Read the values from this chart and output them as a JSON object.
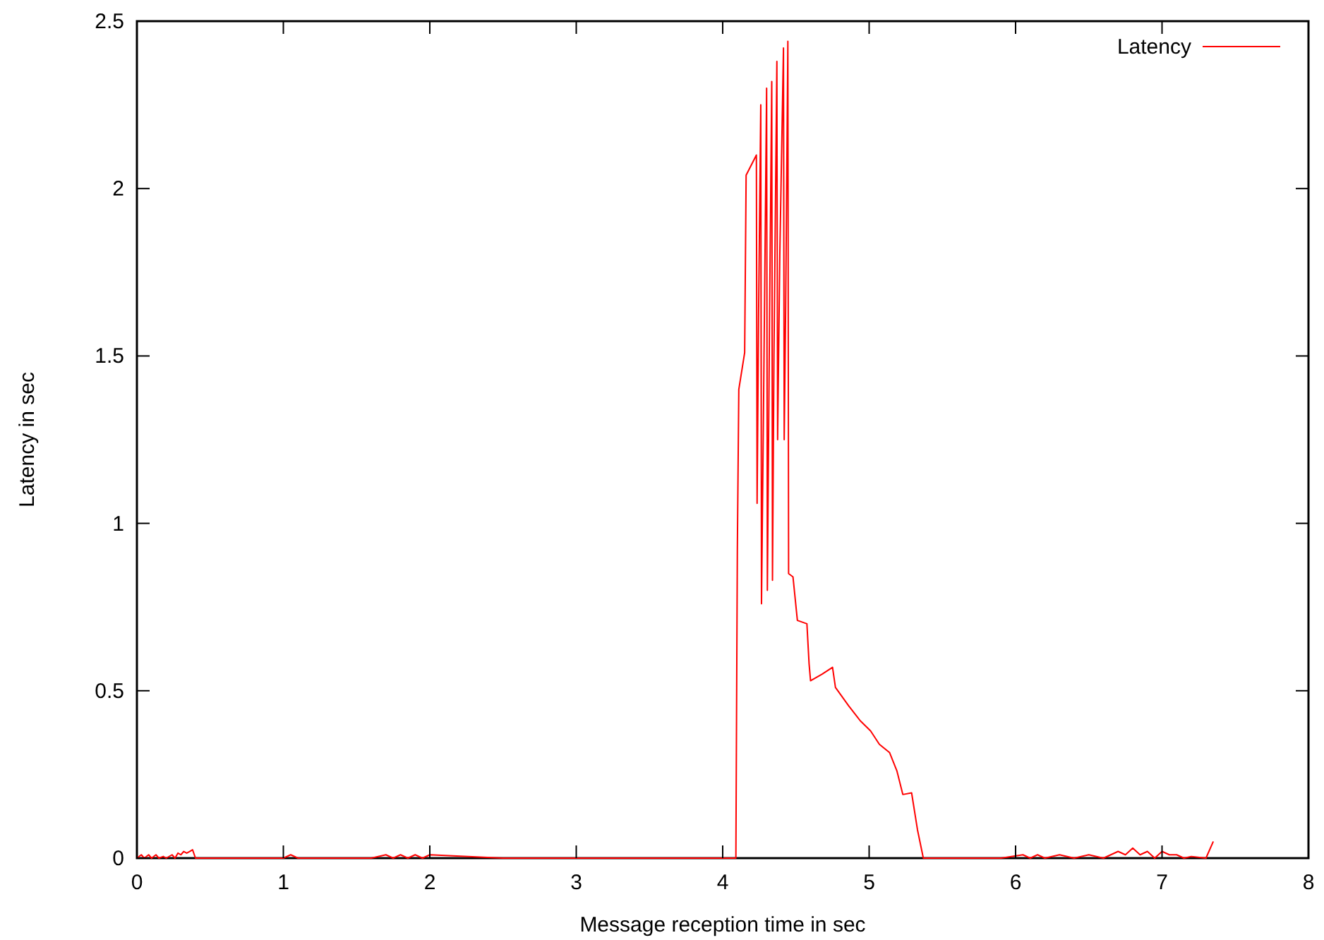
{
  "chart_data": {
    "type": "line",
    "xlabel": "Message reception time in sec",
    "ylabel": "Latency in sec",
    "xlim": [
      0,
      8
    ],
    "ylim": [
      0,
      2.5
    ],
    "xticks": [
      0,
      1,
      2,
      3,
      4,
      5,
      6,
      7,
      8
    ],
    "yticks": [
      0,
      0.5,
      1,
      1.5,
      2,
      2.5
    ],
    "grid": false,
    "legend": "top right",
    "line_style": "solid",
    "series": [
      {
        "name": "Latency",
        "color": "#ff0000",
        "x": [
          0,
          0.03,
          0.05,
          0.08,
          0.1,
          0.13,
          0.15,
          0.18,
          0.2,
          0.24,
          0.26,
          0.28,
          0.3,
          0.32,
          0.34,
          0.36,
          0.38,
          0.4,
          0.5,
          0.6,
          0.8,
          1.0,
          1.05,
          1.1,
          1.3,
          1.6,
          1.7,
          1.75,
          1.8,
          1.85,
          1.9,
          1.95,
          2.0,
          2.5,
          3.0,
          3.5,
          4.0,
          4.09,
          4.1,
          4.11,
          4.15,
          4.16,
          4.23,
          4.235,
          4.245,
          4.26,
          4.265,
          4.28,
          4.3,
          4.305,
          4.32,
          4.335,
          4.34,
          4.35,
          4.37,
          4.375,
          4.39,
          4.415,
          4.42,
          4.43,
          4.445,
          4.45,
          4.48,
          4.51,
          4.575,
          4.59,
          4.6,
          4.68,
          4.75,
          4.77,
          4.86,
          4.94,
          5.01,
          5.07,
          5.14,
          5.19,
          5.23,
          5.29,
          5.33,
          5.37,
          5.6,
          5.9,
          6.05,
          6.1,
          6.15,
          6.2,
          6.3,
          6.4,
          6.5,
          6.6,
          6.7,
          6.75,
          6.8,
          6.85,
          6.9,
          6.95,
          7.0,
          7.05,
          7.1,
          7.15,
          7.2,
          7.3,
          7.35
        ],
        "values": [
          0,
          0.01,
          0,
          0.01,
          0,
          0.01,
          0,
          0.005,
          0,
          0.01,
          0,
          0.015,
          0.01,
          0.02,
          0.015,
          0.02,
          0.025,
          0,
          0,
          0,
          0,
          0,
          0.01,
          0,
          0,
          0,
          0.01,
          0,
          0.01,
          0,
          0.01,
          0,
          0.01,
          0,
          0,
          0,
          0,
          0,
          0.92,
          1.4,
          1.51,
          2.04,
          2.1,
          1.06,
          1.62,
          2.25,
          0.76,
          1.4,
          2.3,
          0.8,
          1.62,
          2.32,
          0.83,
          1.5,
          2.38,
          1.25,
          1.8,
          2.42,
          1.25,
          1.65,
          2.44,
          0.85,
          0.84,
          0.71,
          0.7,
          0.58,
          0.53,
          0.55,
          0.57,
          0.51,
          0.455,
          0.41,
          0.38,
          0.34,
          0.315,
          0.26,
          0.19,
          0.195,
          0.085,
          0,
          0,
          0,
          0.01,
          0,
          0.01,
          0,
          0.01,
          0,
          0.01,
          0,
          0.02,
          0.01,
          0.03,
          0.01,
          0.02,
          0,
          0.02,
          0.01,
          0.01,
          0,
          0.005,
          0,
          0.05
        ]
      }
    ]
  }
}
